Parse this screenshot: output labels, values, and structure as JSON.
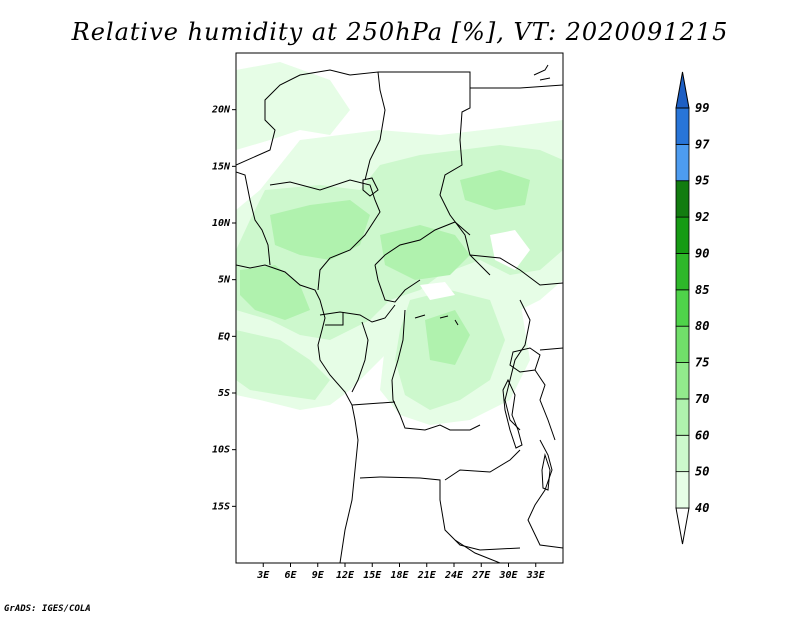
{
  "title": "Relative humidity at 250hPa [%], VT: 2020091215",
  "credit": "GrADS: IGES/COLA",
  "map": {
    "lon_range": [
      0,
      36
    ],
    "lat_range": [
      -20,
      25
    ],
    "lat_labels": [
      {
        "lat": 20,
        "label": "20N"
      },
      {
        "lat": 15,
        "label": "15N"
      },
      {
        "lat": 10,
        "label": "10N"
      },
      {
        "lat": 5,
        "label": "5N"
      },
      {
        "lat": 0,
        "label": "EQ"
      },
      {
        "lat": -5,
        "label": "5S"
      },
      {
        "lat": -10,
        "label": "10S"
      },
      {
        "lat": -15,
        "label": "15S"
      }
    ],
    "lon_labels": [
      {
        "lon": 3,
        "label": "3E"
      },
      {
        "lon": 6,
        "label": "6E"
      },
      {
        "lon": 9,
        "label": "9E"
      },
      {
        "lon": 12,
        "label": "12E"
      },
      {
        "lon": 15,
        "label": "15E"
      },
      {
        "lon": 18,
        "label": "18E"
      },
      {
        "lon": 21,
        "label": "21E"
      },
      {
        "lon": 24,
        "label": "24E"
      },
      {
        "lon": 27,
        "label": "27E"
      },
      {
        "lon": 30,
        "label": "30E"
      },
      {
        "lon": 33,
        "label": "33E"
      }
    ]
  },
  "colorbar": {
    "levels": [
      "40",
      "50",
      "60",
      "70",
      "75",
      "80",
      "85",
      "90",
      "92",
      "95",
      "97",
      "99"
    ],
    "colors": [
      "#ffffff",
      "#e6fde6",
      "#cdf8cd",
      "#b0f2ae",
      "#92ea8c",
      "#71df6a",
      "#4fd34a",
      "#2eb82a",
      "#169b14",
      "#127c10",
      "#4d9cf0",
      "#2875d8",
      "#1d5fc4"
    ]
  }
}
